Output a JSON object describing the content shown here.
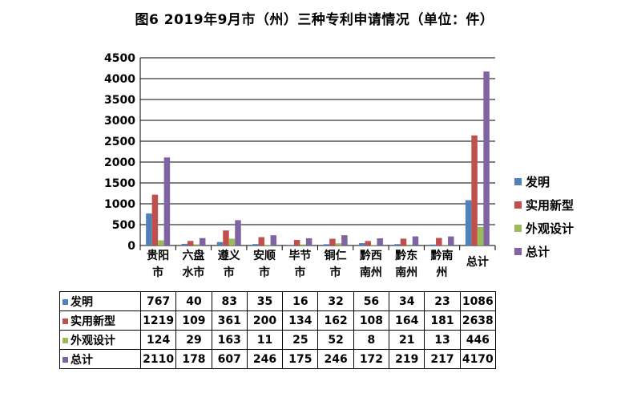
{
  "chart_data": {
    "type": "bar",
    "title": "图6  2019年9月市（州）三种专利申请情况（单位：件）",
    "categories": [
      [
        "贵阳",
        "市"
      ],
      [
        "六盘",
        "水市"
      ],
      [
        "遵义",
        "市"
      ],
      [
        "安顺",
        "市"
      ],
      [
        "毕节",
        "市"
      ],
      [
        "铜仁",
        "市"
      ],
      [
        "黔西",
        "南州"
      ],
      [
        "黔东",
        "南州"
      ],
      [
        "黔南",
        "州"
      ],
      [
        "总计"
      ]
    ],
    "series": [
      {
        "name": "发明",
        "color": "#4f81bd",
        "values": [
          767,
          40,
          83,
          35,
          16,
          32,
          56,
          34,
          23,
          1086
        ]
      },
      {
        "name": "实用新型",
        "color": "#c0504d",
        "values": [
          1219,
          109,
          361,
          200,
          134,
          162,
          108,
          164,
          181,
          2638
        ]
      },
      {
        "name": "外观设计",
        "color": "#9bbb59",
        "values": [
          124,
          29,
          163,
          11,
          25,
          52,
          8,
          21,
          13,
          446
        ]
      },
      {
        "name": "总计",
        "color": "#8064a2",
        "values": [
          2110,
          178,
          607,
          246,
          175,
          246,
          172,
          219,
          217,
          4170
        ]
      }
    ],
    "ylim": [
      0,
      4500
    ],
    "yticks": [
      0,
      500,
      1000,
      1500,
      2000,
      2500,
      3000,
      3500,
      4000,
      4500
    ],
    "grid": true,
    "legend": "right"
  }
}
